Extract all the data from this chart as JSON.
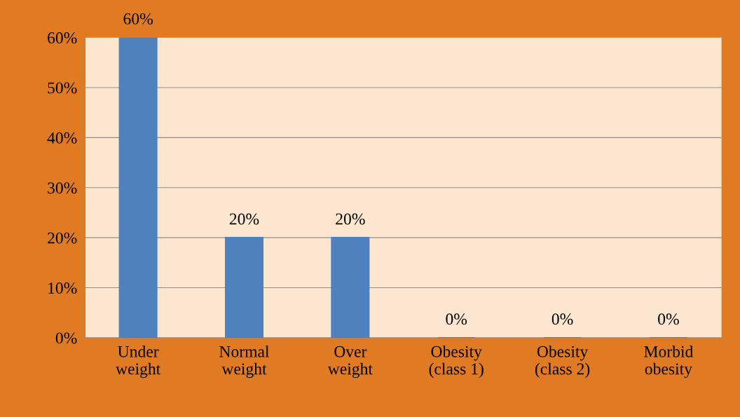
{
  "chart_data": {
    "type": "bar",
    "categories": [
      "Under\nweight",
      "Normal\nweight",
      "Over\nweight",
      "Obesity\n(class 1)",
      "Obesity\n(class 2)",
      "Morbid\nobesity"
    ],
    "values": [
      60,
      20,
      20,
      0,
      0,
      0
    ],
    "value_labels": [
      "60%",
      "20%",
      "20%",
      "0%",
      "0%",
      "0%"
    ],
    "color": "#4f81bd",
    "ylim": [
      0,
      60
    ],
    "yticks": [
      {
        "value": 0,
        "label": "0%"
      },
      {
        "value": 10,
        "label": "10%"
      },
      {
        "value": 20,
        "label": "20%"
      },
      {
        "value": 30,
        "label": "30%"
      },
      {
        "value": 40,
        "label": "40%"
      },
      {
        "value": 50,
        "label": "50%"
      },
      {
        "value": 60,
        "label": "60%"
      }
    ],
    "grid": "y"
  }
}
